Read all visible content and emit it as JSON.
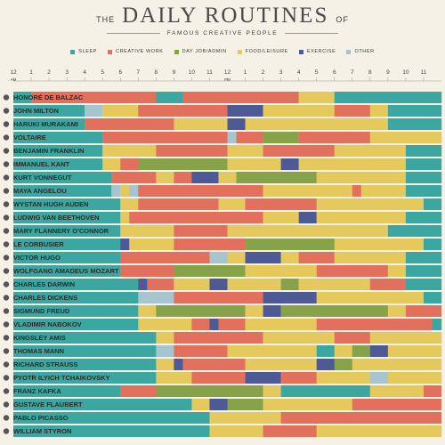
{
  "header": {
    "title_prefix": "THE",
    "title_main": "DAILY ROUTINES",
    "title_suffix": "OF",
    "subtitle": "FAMOUS CREATIVE PEOPLE"
  },
  "colors": {
    "sleep": "#3ca7a0",
    "creative": "#e2705c",
    "dayjob": "#86a34a",
    "food": "#e6c95c",
    "exercise": "#4d5a96",
    "other": "#a7c5ce"
  },
  "axis_labels": {
    "am": "AM",
    "pm": "PM"
  },
  "chart_data": {
    "type": "gantt",
    "title": "THE DAILY ROUTINES OF FAMOUS CREATIVE PEOPLE",
    "x_unit": "hour of day (0 = 12 AM)",
    "xlim": [
      0,
      24
    ],
    "ticks": [
      "12",
      "1",
      "2",
      "3",
      "4",
      "5",
      "6",
      "7",
      "8",
      "9",
      "10",
      "11",
      "12",
      "1",
      "2",
      "3",
      "4",
      "5",
      "6",
      "7",
      "8",
      "9",
      "10",
      "11"
    ],
    "legend": [
      {
        "key": "sleep",
        "label": "SLEEP"
      },
      {
        "key": "creative",
        "label": "CREATIVE WORK"
      },
      {
        "key": "dayjob",
        "label": "DAY JOB/ADMIN"
      },
      {
        "key": "food",
        "label": "FOOD/LEISURE"
      },
      {
        "key": "exercise",
        "label": "EXERCISE"
      },
      {
        "key": "other",
        "label": "OTHER"
      }
    ],
    "people": [
      {
        "name": "HONORÉ DE BALZAC",
        "segments": [
          [
            0,
            1,
            "sleep"
          ],
          [
            1,
            8,
            "creative"
          ],
          [
            8,
            9.5,
            "sleep"
          ],
          [
            9.5,
            16,
            "creative"
          ],
          [
            16,
            18,
            "food"
          ],
          [
            18,
            24,
            "sleep"
          ]
        ]
      },
      {
        "name": "JOHN MILTON",
        "segments": [
          [
            0,
            4,
            "sleep"
          ],
          [
            4,
            5,
            "other"
          ],
          [
            5,
            7,
            "food"
          ],
          [
            7,
            12,
            "creative"
          ],
          [
            12,
            14,
            "exercise"
          ],
          [
            14,
            18,
            "food"
          ],
          [
            18,
            20,
            "creative"
          ],
          [
            20,
            21,
            "food"
          ],
          [
            21,
            24,
            "sleep"
          ]
        ]
      },
      {
        "name": "HARUKI MURAKAMI",
        "segments": [
          [
            0,
            4,
            "sleep"
          ],
          [
            4,
            9,
            "creative"
          ],
          [
            9,
            12,
            "food"
          ],
          [
            12,
            13,
            "exercise"
          ],
          [
            13,
            21,
            "food"
          ],
          [
            21,
            24,
            "sleep"
          ]
        ]
      },
      {
        "name": "VOLTAIRE",
        "segments": [
          [
            0,
            5,
            "sleep"
          ],
          [
            5,
            12,
            "creative"
          ],
          [
            12,
            12.5,
            "other"
          ],
          [
            12.5,
            14,
            "creative"
          ],
          [
            14,
            16,
            "dayjob"
          ],
          [
            16,
            20,
            "creative"
          ],
          [
            20,
            24,
            "food"
          ]
        ]
      },
      {
        "name": "BENJAMIN FRANKLIN",
        "segments": [
          [
            0,
            5,
            "sleep"
          ],
          [
            5,
            8,
            "food"
          ],
          [
            8,
            12,
            "creative"
          ],
          [
            12,
            14,
            "food"
          ],
          [
            14,
            18,
            "creative"
          ],
          [
            18,
            22,
            "food"
          ],
          [
            22,
            24,
            "sleep"
          ]
        ]
      },
      {
        "name": "IMMANUEL KANT",
        "segments": [
          [
            0,
            5,
            "sleep"
          ],
          [
            5,
            6,
            "food"
          ],
          [
            6,
            7,
            "creative"
          ],
          [
            7,
            12,
            "dayjob"
          ],
          [
            12,
            15,
            "food"
          ],
          [
            15,
            16,
            "exercise"
          ],
          [
            16,
            22,
            "food"
          ],
          [
            22,
            24,
            "sleep"
          ]
        ]
      },
      {
        "name": "KURT VONNEGUT",
        "segments": [
          [
            0,
            5.5,
            "sleep"
          ],
          [
            5.5,
            8,
            "creative"
          ],
          [
            8,
            9,
            "food"
          ],
          [
            9,
            10,
            "creative"
          ],
          [
            10,
            11.5,
            "exercise"
          ],
          [
            11.5,
            12.5,
            "food"
          ],
          [
            12.5,
            17,
            "dayjob"
          ],
          [
            17,
            22,
            "food"
          ],
          [
            22,
            24,
            "sleep"
          ]
        ]
      },
      {
        "name": "MAYA ANGELOU",
        "segments": [
          [
            0,
            5.5,
            "sleep"
          ],
          [
            5.5,
            6,
            "other"
          ],
          [
            6,
            6.5,
            "food"
          ],
          [
            6.5,
            7,
            "other"
          ],
          [
            7,
            14,
            "creative"
          ],
          [
            14,
            19,
            "food"
          ],
          [
            19,
            19.5,
            "creative"
          ],
          [
            19.5,
            22,
            "food"
          ],
          [
            22,
            24,
            "sleep"
          ]
        ]
      },
      {
        "name": "WYSTAN HUGH AUDEN",
        "segments": [
          [
            0,
            6,
            "sleep"
          ],
          [
            6,
            7,
            "food"
          ],
          [
            7,
            11.5,
            "creative"
          ],
          [
            11.5,
            13,
            "food"
          ],
          [
            13,
            17,
            "creative"
          ],
          [
            17,
            23,
            "food"
          ],
          [
            23,
            24,
            "sleep"
          ]
        ]
      },
      {
        "name": "LUDWIG VAN BEETHOVEN",
        "segments": [
          [
            0,
            6,
            "sleep"
          ],
          [
            6,
            6.5,
            "food"
          ],
          [
            6.5,
            14,
            "creative"
          ],
          [
            14,
            16,
            "food"
          ],
          [
            16,
            17,
            "exercise"
          ],
          [
            17,
            22,
            "food"
          ],
          [
            22,
            24,
            "sleep"
          ]
        ]
      },
      {
        "name": "MARY FLANNERY O'CONNOR",
        "segments": [
          [
            0,
            6,
            "sleep"
          ],
          [
            6,
            9,
            "food"
          ],
          [
            9,
            12,
            "creative"
          ],
          [
            12,
            21,
            "food"
          ],
          [
            21,
            24,
            "sleep"
          ]
        ]
      },
      {
        "name": "LE CORBUSIER",
        "segments": [
          [
            0,
            6,
            "sleep"
          ],
          [
            6,
            6.5,
            "exercise"
          ],
          [
            6.5,
            9,
            "food"
          ],
          [
            9,
            13,
            "creative"
          ],
          [
            13,
            18,
            "dayjob"
          ],
          [
            18,
            23,
            "food"
          ],
          [
            23,
            24,
            "sleep"
          ]
        ]
      },
      {
        "name": "VICTOR HUGO",
        "segments": [
          [
            0,
            6,
            "sleep"
          ],
          [
            6,
            11,
            "creative"
          ],
          [
            11,
            12,
            "other"
          ],
          [
            12,
            13,
            "food"
          ],
          [
            13,
            15,
            "exercise"
          ],
          [
            15,
            16,
            "food"
          ],
          [
            16,
            18,
            "creative"
          ],
          [
            18,
            22,
            "food"
          ],
          [
            22,
            24,
            "sleep"
          ]
        ]
      },
      {
        "name": "WOLFGANG AMADEUS MOZART",
        "segments": [
          [
            0,
            6,
            "sleep"
          ],
          [
            6,
            9,
            "creative"
          ],
          [
            9,
            13,
            "dayjob"
          ],
          [
            13,
            17,
            "food"
          ],
          [
            17,
            21,
            "creative"
          ],
          [
            21,
            22,
            "food"
          ],
          [
            22,
            24,
            "sleep"
          ]
        ]
      },
      {
        "name": "CHARLES DARWIN",
        "segments": [
          [
            0,
            7,
            "sleep"
          ],
          [
            7,
            7.5,
            "exercise"
          ],
          [
            7.5,
            9,
            "creative"
          ],
          [
            9,
            11,
            "food"
          ],
          [
            11,
            12,
            "exercise"
          ],
          [
            12,
            15,
            "food"
          ],
          [
            15,
            16,
            "dayjob"
          ],
          [
            16,
            20,
            "food"
          ],
          [
            20,
            22,
            "creative"
          ],
          [
            22,
            24,
            "sleep"
          ]
        ]
      },
      {
        "name": "CHARLES DICKENS",
        "segments": [
          [
            0,
            7,
            "sleep"
          ],
          [
            7,
            9,
            "other"
          ],
          [
            9,
            14,
            "creative"
          ],
          [
            14,
            17,
            "exercise"
          ],
          [
            17,
            23,
            "food"
          ],
          [
            23,
            24,
            "sleep"
          ]
        ]
      },
      {
        "name": "SIGMUND FREUD",
        "segments": [
          [
            0,
            7,
            "sleep"
          ],
          [
            7,
            8,
            "food"
          ],
          [
            8,
            13,
            "dayjob"
          ],
          [
            13,
            14,
            "food"
          ],
          [
            14,
            15,
            "exercise"
          ],
          [
            15,
            21,
            "dayjob"
          ],
          [
            21,
            22,
            "food"
          ],
          [
            22,
            24,
            "creative"
          ]
        ]
      },
      {
        "name": "VLADIMIR NABOKOV",
        "segments": [
          [
            0,
            7,
            "sleep"
          ],
          [
            7,
            10,
            "food"
          ],
          [
            10,
            11,
            "creative"
          ],
          [
            11,
            11.5,
            "exercise"
          ],
          [
            11.5,
            13,
            "creative"
          ],
          [
            13,
            17,
            "food"
          ],
          [
            17,
            23.5,
            "creative"
          ],
          [
            23.5,
            24,
            "sleep"
          ]
        ]
      },
      {
        "name": "KINGSLEY AMIS",
        "segments": [
          [
            0,
            8,
            "sleep"
          ],
          [
            8,
            9,
            "food"
          ],
          [
            9,
            14,
            "creative"
          ],
          [
            14,
            18,
            "food"
          ],
          [
            18,
            20,
            "creative"
          ],
          [
            20,
            24,
            "food"
          ]
        ]
      },
      {
        "name": "THOMAS MANN",
        "segments": [
          [
            0,
            8,
            "sleep"
          ],
          [
            8,
            9,
            "other"
          ],
          [
            9,
            12,
            "creative"
          ],
          [
            12,
            17,
            "food"
          ],
          [
            17,
            18,
            "sleep"
          ],
          [
            18,
            19,
            "food"
          ],
          [
            19,
            20,
            "dayjob"
          ],
          [
            20,
            21,
            "exercise"
          ],
          [
            21,
            24,
            "food"
          ]
        ]
      },
      {
        "name": "RICHARD STRAUSS",
        "segments": [
          [
            0,
            8,
            "sleep"
          ],
          [
            8,
            9,
            "food"
          ],
          [
            9,
            9.5,
            "exercise"
          ],
          [
            9.5,
            13,
            "creative"
          ],
          [
            13,
            17,
            "food"
          ],
          [
            17,
            18,
            "exercise"
          ],
          [
            18,
            19,
            "dayjob"
          ],
          [
            19,
            24,
            "food"
          ]
        ]
      },
      {
        "name": "PYOTR ILYICH TCHAIKOVSKY",
        "segments": [
          [
            0,
            8,
            "sleep"
          ],
          [
            8,
            10,
            "food"
          ],
          [
            10,
            13,
            "creative"
          ],
          [
            13,
            15,
            "exercise"
          ],
          [
            15,
            17,
            "creative"
          ],
          [
            17,
            20,
            "food"
          ],
          [
            20,
            21,
            "other"
          ],
          [
            21,
            24,
            "food"
          ]
        ]
      },
      {
        "name": "FRANZ KAFKA",
        "segments": [
          [
            0,
            6,
            "sleep"
          ],
          [
            6,
            8,
            "creative"
          ],
          [
            8,
            14,
            "dayjob"
          ],
          [
            14,
            15,
            "food"
          ],
          [
            15,
            20,
            "sleep"
          ],
          [
            20,
            23,
            "food"
          ],
          [
            23,
            24,
            "creative"
          ]
        ]
      },
      {
        "name": "GUSTAVE FLAUBERT",
        "segments": [
          [
            0,
            10,
            "sleep"
          ],
          [
            10,
            11,
            "food"
          ],
          [
            11,
            12,
            "exercise"
          ],
          [
            12,
            14,
            "dayjob"
          ],
          [
            14,
            19,
            "food"
          ],
          [
            19,
            24,
            "creative"
          ]
        ]
      },
      {
        "name": "PABLO PICASSO",
        "segments": [
          [
            0,
            11,
            "sleep"
          ],
          [
            11,
            15,
            "food"
          ],
          [
            15,
            24,
            "creative"
          ]
        ]
      },
      {
        "name": "WILLIAM STYRON",
        "segments": [
          [
            0,
            11,
            "sleep"
          ],
          [
            11,
            14,
            "food"
          ],
          [
            14,
            17,
            "creative"
          ],
          [
            17,
            24,
            "food"
          ]
        ]
      }
    ]
  }
}
